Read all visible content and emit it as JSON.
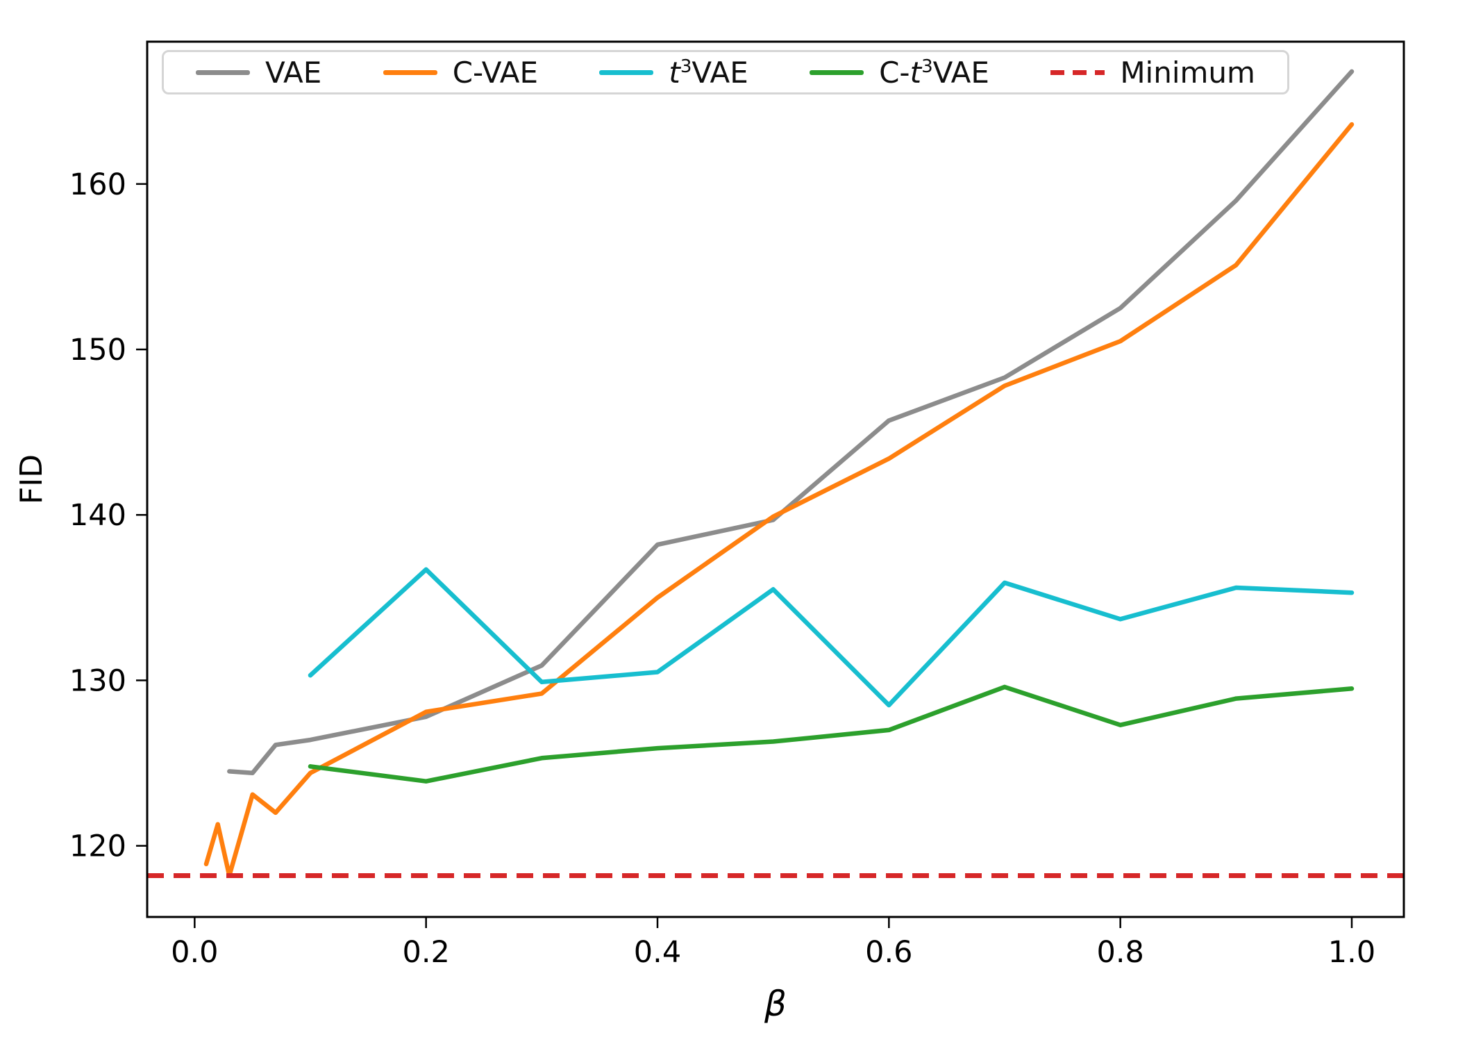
{
  "chart_data": {
    "type": "line",
    "title": "",
    "xlabel": "β",
    "ylabel": "FID",
    "xlim": [
      -0.041,
      1.045
    ],
    "ylim": [
      115.7,
      168.6
    ],
    "grid": false,
    "legend_position": "upper center, inside plot, single horizontal row",
    "x_ticks": [
      0.0,
      0.2,
      0.4,
      0.6,
      0.8,
      1.0
    ],
    "x_tick_labels": [
      "0.0",
      "0.2",
      "0.4",
      "0.6",
      "0.8",
      "1.0"
    ],
    "y_ticks": [
      120,
      130,
      140,
      150,
      160
    ],
    "y_tick_labels": [
      "120",
      "130",
      "140",
      "150",
      "160"
    ],
    "series": [
      {
        "name": "VAE",
        "color": "#8c8c8c",
        "style": "solid",
        "kind": "line",
        "x": [
          0.03,
          0.05,
          0.07,
          0.1,
          0.2,
          0.3,
          0.4,
          0.5,
          0.6,
          0.7,
          0.8,
          0.9,
          1.0
        ],
        "y": [
          124.5,
          124.4,
          126.1,
          126.4,
          127.8,
          130.9,
          138.2,
          139.7,
          145.7,
          148.3,
          152.5,
          159.0,
          166.8
        ]
      },
      {
        "name": "C-VAE",
        "color": "#ff7f0e",
        "style": "solid",
        "kind": "line",
        "x": [
          0.01,
          0.02,
          0.03,
          0.05,
          0.07,
          0.1,
          0.2,
          0.3,
          0.4,
          0.5,
          0.6,
          0.7,
          0.8,
          0.9,
          1.0
        ],
        "y": [
          118.9,
          121.3,
          118.2,
          123.1,
          122.0,
          124.4,
          128.1,
          129.2,
          135.0,
          139.9,
          143.4,
          147.8,
          150.5,
          155.1,
          163.6
        ]
      },
      {
        "name": "t³VAE",
        "color": "#17becf",
        "style": "solid",
        "kind": "line",
        "x": [
          0.1,
          0.2,
          0.3,
          0.4,
          0.5,
          0.6,
          0.7,
          0.8,
          0.9,
          1.0
        ],
        "y": [
          130.3,
          136.7,
          129.9,
          130.5,
          135.5,
          128.5,
          135.9,
          133.7,
          135.6,
          135.3
        ]
      },
      {
        "name": "C-t³VAE",
        "color": "#2ca02c",
        "style": "solid",
        "kind": "line",
        "x": [
          0.1,
          0.2,
          0.3,
          0.4,
          0.5,
          0.6,
          0.7,
          0.8,
          0.9,
          1.0
        ],
        "y": [
          124.8,
          123.9,
          125.3,
          125.9,
          126.3,
          127.0,
          129.6,
          127.3,
          128.9,
          129.5
        ]
      },
      {
        "name": "Minimum",
        "color": "#d62728",
        "style": "dashed",
        "kind": "hline",
        "y_value": 118.2
      }
    ]
  }
}
